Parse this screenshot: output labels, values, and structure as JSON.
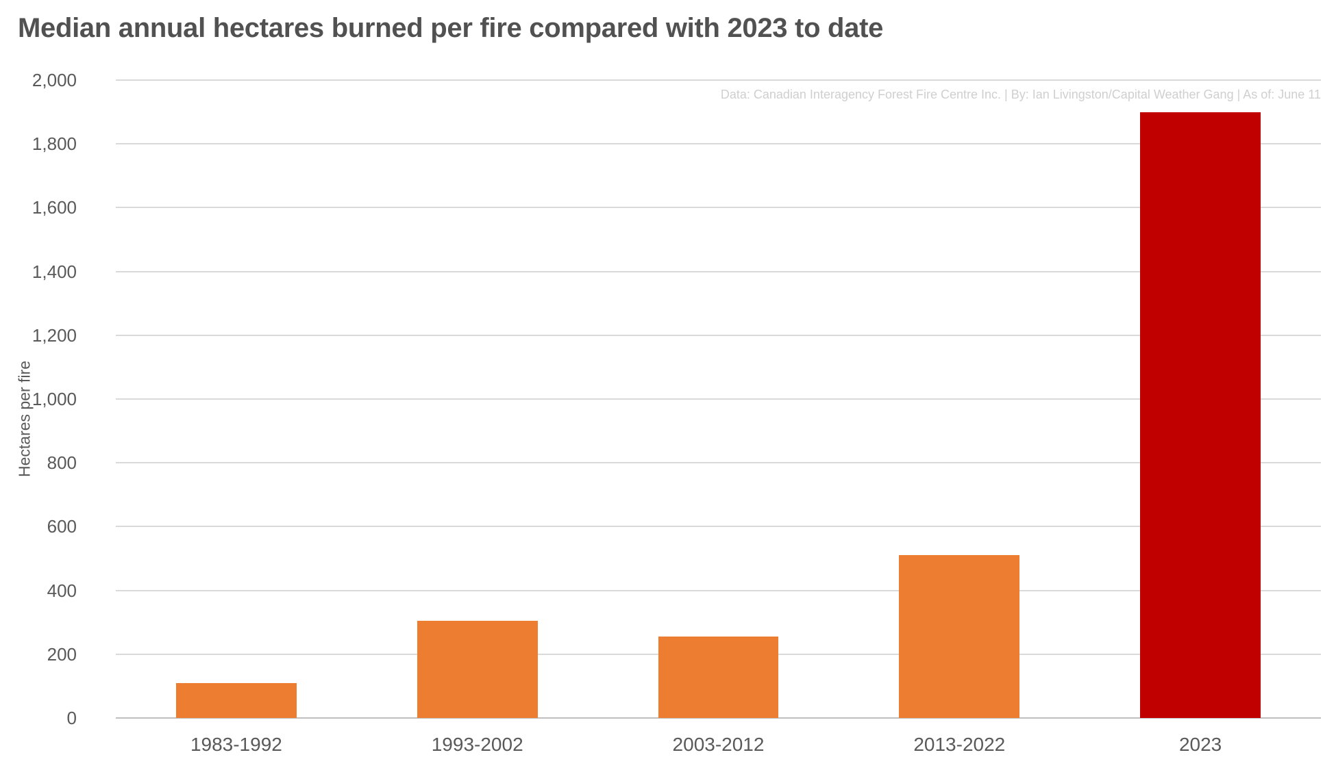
{
  "chart_data": {
    "type": "bar",
    "title": "Median annual hectares burned per fire compared with 2023 to date",
    "source_note": "Data: Canadian Interagency Forest Fire Centre Inc. | By: Ian Livingston/Capital Weather Gang | As of: June 11",
    "xlabel": "",
    "ylabel": "Hectares per fire",
    "categories": [
      "1983-1992",
      "1993-2002",
      "2003-2012",
      "2013-2022",
      "2023"
    ],
    "values": [
      110,
      305,
      255,
      510,
      1900
    ],
    "bar_colors": [
      "#ED7D31",
      "#ED7D31",
      "#ED7D31",
      "#ED7D31",
      "#C00000"
    ],
    "ylim": [
      0,
      2000
    ],
    "ytick_values": [
      0,
      200,
      400,
      600,
      800,
      1000,
      1200,
      1400,
      1600,
      1800,
      2000
    ],
    "ytick_labels": [
      "0",
      "200",
      "400",
      "600",
      "800",
      "1,000",
      "1,200",
      "1,400",
      "1,600",
      "1,800",
      "2,000"
    ],
    "grid": true,
    "legend": false,
    "bar_width_fraction": 0.5
  },
  "colors": {
    "background": "#FFFFFF",
    "title_text": "#515151",
    "axis_text": "#595959",
    "gridline": "#D9D9D9",
    "axis_line": "#BFBFBF",
    "source_text": "#D0CFCF",
    "bar_orange": "#ED7D31",
    "bar_red_2023": "#C00000"
  }
}
